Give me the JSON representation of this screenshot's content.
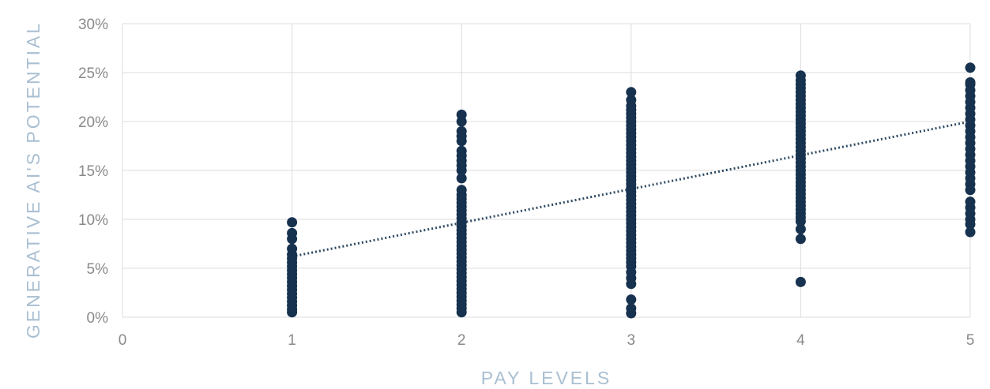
{
  "chart_data": {
    "type": "scatter",
    "title": "",
    "xlabel": "PAY LEVELS",
    "ylabel": "GENERATIVE AI'S POTENTIAL",
    "xlim": [
      0,
      5
    ],
    "ylim": [
      0,
      30
    ],
    "x_ticks": [
      0,
      1,
      2,
      3,
      4,
      5
    ],
    "y_ticks": [
      0,
      5,
      10,
      15,
      20,
      25,
      30
    ],
    "y_tick_labels": [
      "0%",
      "5%",
      "10%",
      "15%",
      "20%",
      "25%",
      "30%"
    ],
    "grid": true,
    "legend": "none",
    "point_color": "#17324f",
    "trendline": {
      "style": "dotted",
      "color": "#2f4a63",
      "from": [
        1,
        6.2
      ],
      "to": [
        5,
        20.0
      ]
    },
    "series": [
      {
        "x": 1,
        "values": [
          0.5,
          0.8,
          1.2,
          1.6,
          2.0,
          2.4,
          2.8,
          3.2,
          3.6,
          4.0,
          4.4,
          4.8,
          5.2,
          5.6,
          6.0,
          6.4,
          7.0,
          8.0,
          8.6,
          9.7
        ]
      },
      {
        "x": 2,
        "values": [
          0.5,
          0.9,
          1.3,
          1.7,
          2.1,
          2.5,
          2.9,
          3.3,
          3.7,
          4.1,
          4.5,
          4.9,
          5.3,
          5.7,
          6.1,
          6.5,
          6.9,
          7.3,
          7.7,
          8.1,
          8.5,
          8.9,
          9.3,
          9.7,
          10.1,
          10.5,
          10.9,
          11.3,
          11.7,
          12.1,
          12.5,
          13.0,
          14.2,
          15.0,
          15.5,
          16.0,
          16.5,
          17.0,
          18.0,
          18.5,
          19.0,
          20.0,
          20.7
        ]
      },
      {
        "x": 3,
        "values": [
          0.4,
          0.9,
          1.8,
          3.4,
          4.0,
          4.6,
          5.2,
          5.6,
          6.0,
          6.4,
          6.8,
          7.2,
          7.6,
          8.0,
          8.4,
          8.8,
          9.2,
          9.6,
          10.0,
          10.4,
          10.8,
          11.2,
          11.6,
          12.0,
          12.4,
          12.8,
          13.2,
          13.6,
          14.0,
          14.4,
          14.8,
          15.2,
          15.6,
          16.0,
          16.4,
          16.8,
          17.2,
          17.6,
          18.0,
          18.4,
          18.8,
          19.2,
          19.6,
          20.0,
          20.4,
          20.8,
          21.2,
          21.6,
          22.2,
          23.0
        ]
      },
      {
        "x": 4,
        "values": [
          3.6,
          8.0,
          9.0,
          9.8,
          10.2,
          10.6,
          11.0,
          11.4,
          11.8,
          12.2,
          12.6,
          13.0,
          13.4,
          13.8,
          14.2,
          14.6,
          15.0,
          15.4,
          15.8,
          16.2,
          16.6,
          17.0,
          17.4,
          17.8,
          18.2,
          18.6,
          19.0,
          19.4,
          19.8,
          20.2,
          20.6,
          21.0,
          21.4,
          21.8,
          22.2,
          22.6,
          23.0,
          23.4,
          23.8,
          24.2,
          24.7
        ]
      },
      {
        "x": 5,
        "values": [
          8.7,
          9.5,
          10.0,
          10.6,
          11.2,
          11.8,
          13.0,
          13.6,
          14.2,
          14.8,
          15.4,
          16.0,
          16.6,
          17.2,
          17.8,
          18.4,
          19.0,
          19.6,
          20.2,
          20.8,
          21.4,
          22.0,
          22.6,
          23.2,
          23.8,
          24.0,
          25.5
        ]
      }
    ]
  }
}
